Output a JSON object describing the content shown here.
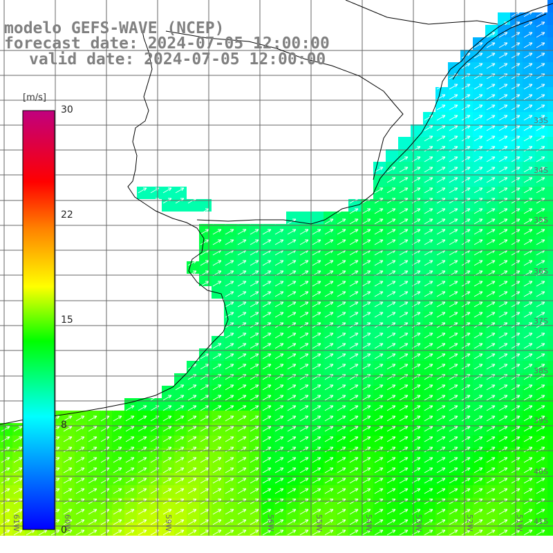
{
  "header": {
    "line1": "modelo GEFS-WAVE (NCEP)",
    "line2": "forecast date: 2024-07-05 12:00:00",
    "line3": "valid date: 2024-07-05 12:00:00"
  },
  "colorbar": {
    "unit": "[m/s]",
    "ticks": [
      "30",
      "22",
      "15",
      "8",
      "0"
    ],
    "range": [
      0,
      30
    ],
    "colors": [
      "#0000ff",
      "#00ffff",
      "#00ff00",
      "#ffff00",
      "#ff8000",
      "#ff0000",
      "#c0007f"
    ]
  },
  "map": {
    "lat_labels": [
      "33S",
      "34S",
      "35S",
      "36S",
      "37S",
      "38S",
      "39S",
      "40S",
      "41S"
    ],
    "lon_labels": [
      "61W",
      "60W",
      "59W",
      "56W",
      "55W",
      "54W",
      "53W",
      "52W",
      "51W"
    ],
    "lat_top": 32.2,
    "lat_bottom": 41.3,
    "lon_left": 60.8,
    "lon_right": 50.5,
    "land_color": "#ffffff",
    "grid_color": "#666666",
    "arrow_color": "#ffffff",
    "wind_direction": "toward NE (from SW)"
  }
}
